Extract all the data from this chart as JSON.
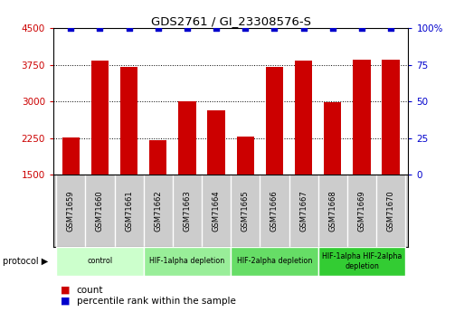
{
  "title": "GDS2761 / GI_23308576-S",
  "samples": [
    "GSM71659",
    "GSM71660",
    "GSM71661",
    "GSM71662",
    "GSM71663",
    "GSM71664",
    "GSM71665",
    "GSM71666",
    "GSM71667",
    "GSM71668",
    "GSM71669",
    "GSM71670"
  ],
  "counts": [
    2260,
    3830,
    3700,
    2200,
    3000,
    2820,
    2290,
    3700,
    3840,
    2980,
    3860,
    3860
  ],
  "percentile_ranks": [
    100,
    100,
    100,
    100,
    100,
    100,
    100,
    100,
    100,
    100,
    100,
    100
  ],
  "ylim_left": [
    1500,
    4500
  ],
  "ylim_right": [
    0,
    100
  ],
  "yticks_left": [
    1500,
    2250,
    3000,
    3750,
    4500
  ],
  "yticks_right": [
    0,
    25,
    50,
    75,
    100
  ],
  "bar_color": "#cc0000",
  "dot_color": "#0000cc",
  "grid_color": "#000000",
  "bg_color": "#ffffff",
  "sample_box_color": "#cccccc",
  "protocol_groups": [
    {
      "label": "control",
      "start": 0,
      "end": 2,
      "color": "#ccffcc"
    },
    {
      "label": "HIF-1alpha depletion",
      "start": 3,
      "end": 5,
      "color": "#99ee99"
    },
    {
      "label": "HIF-2alpha depletion",
      "start": 6,
      "end": 8,
      "color": "#66dd66"
    },
    {
      "label": "HIF-1alpha HIF-2alpha\ndepletion",
      "start": 9,
      "end": 11,
      "color": "#33cc33"
    }
  ],
  "legend_count_color": "#cc0000",
  "legend_dot_color": "#0000cc",
  "tick_label_color_left": "#cc0000",
  "tick_label_color_right": "#0000cc"
}
